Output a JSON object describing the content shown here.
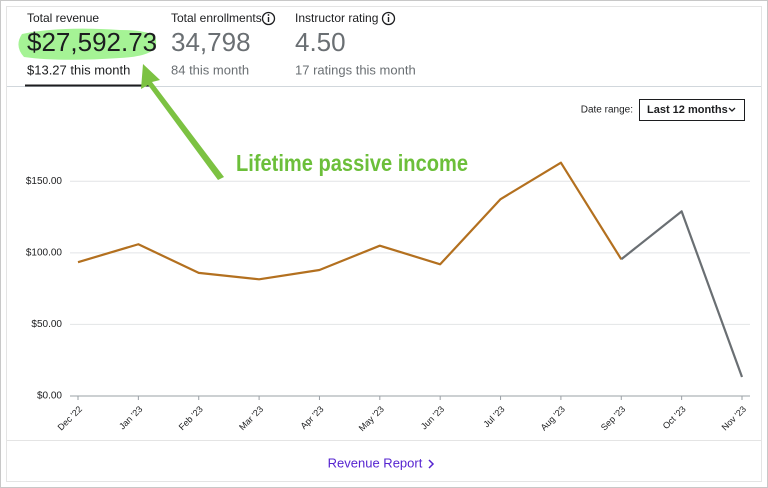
{
  "stats": [
    {
      "label": "Total revenue",
      "value": "$27,592.73",
      "sub": "$13.27 this month"
    },
    {
      "label": "Total enrollments",
      "value": "34,798",
      "sub": "84 this month"
    },
    {
      "label": "Instructor rating",
      "value": "4.50",
      "sub": "17 ratings this month"
    }
  ],
  "annotation": "Lifetime passive income",
  "date_range": {
    "label": "Date range:",
    "value": "Last 12 months"
  },
  "footer_link": "Revenue Report",
  "chart_data": {
    "type": "line",
    "categories": [
      "Dec '22",
      "Jan '23",
      "Feb '23",
      "Mar '23",
      "Apr '23",
      "May '23",
      "Jun '23",
      "Jul '23",
      "Aug '23",
      "Sep '23",
      "Oct '23",
      "Nov '23"
    ],
    "series": [
      {
        "color": "#b3701f",
        "values": [
          93.5,
          106,
          86,
          81.5,
          88,
          105,
          92,
          137.5,
          163,
          95.5,
          null,
          null
        ]
      },
      {
        "color": "#6a6f73",
        "values": [
          null,
          null,
          null,
          null,
          null,
          null,
          null,
          null,
          null,
          95.5,
          129,
          13.27
        ]
      }
    ],
    "ylim": [
      0,
      190
    ],
    "yticks": [
      {
        "value": 0,
        "label": "$0.00"
      },
      {
        "value": 50,
        "label": "$50.00"
      },
      {
        "value": 100,
        "label": "$100.00"
      },
      {
        "value": 150,
        "label": "$150.00"
      }
    ],
    "grid": true
  }
}
